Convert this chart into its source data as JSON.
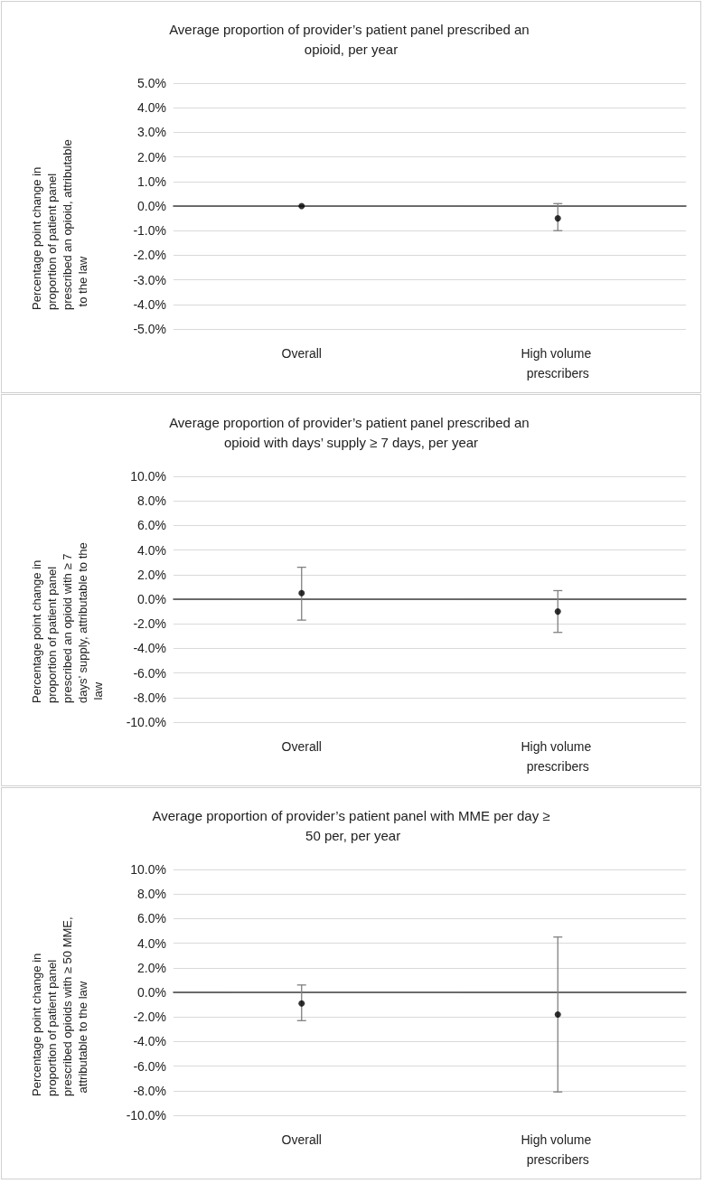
{
  "chart_data": [
    {
      "type": "scatter",
      "title": "Average proportion of provider’s patient panel prescribed an opioid, per year",
      "ylabel": "Percentage point change in proportion of patient panel prescribed an opioid, attributable to the law",
      "categories": [
        "Overall",
        "High volume prescribers"
      ],
      "values": [
        0.0,
        -0.5
      ],
      "errors": [
        null,
        [
          -1.0,
          0.1
        ]
      ],
      "color": "#000000",
      "marker": "circle",
      "grid": "y",
      "ylim": [
        -5,
        5
      ],
      "yticks": [
        {
          "value": -5,
          "label": "-5.0%"
        },
        {
          "value": -4,
          "label": "-4.0%"
        },
        {
          "value": -3,
          "label": "-3.0%"
        },
        {
          "value": -2,
          "label": "-2.0%"
        },
        {
          "value": -1,
          "label": "-1.0%"
        },
        {
          "value": 0,
          "label": "0.0%"
        },
        {
          "value": 1,
          "label": "1.0%"
        },
        {
          "value": 2,
          "label": "2.0%"
        },
        {
          "value": 3,
          "label": "3.0%"
        },
        {
          "value": 4,
          "label": "4.0%"
        },
        {
          "value": 5,
          "label": "5.0%"
        }
      ]
    },
    {
      "type": "scatter",
      "title": "Average proportion of provider’s patient panel prescribed an opioid with days’ supply ≥ 7 days, per year",
      "ylabel": "Percentage point change in proportion of patient panel prescribed an opioid with ≥ 7 days’ supply, attributable to the law",
      "categories": [
        "Overall",
        "High volume prescribers"
      ],
      "values": [
        0.5,
        -1.0
      ],
      "errors": [
        [
          -1.7,
          2.6
        ],
        [
          -2.7,
          0.7
        ]
      ],
      "color": "#000000",
      "marker": "circle",
      "grid": "y",
      "ylim": [
        -10,
        10
      ],
      "yticks": [
        {
          "value": -10,
          "label": "-10.0%"
        },
        {
          "value": -8,
          "label": "-8.0%"
        },
        {
          "value": -6,
          "label": "-6.0%"
        },
        {
          "value": -4,
          "label": "-4.0%"
        },
        {
          "value": -2,
          "label": "-2.0%"
        },
        {
          "value": 0,
          "label": "0.0%"
        },
        {
          "value": 2,
          "label": "2.0%"
        },
        {
          "value": 4,
          "label": "4.0%"
        },
        {
          "value": 6,
          "label": "6.0%"
        },
        {
          "value": 8,
          "label": "8.0%"
        },
        {
          "value": 10,
          "label": "10.0%"
        }
      ]
    },
    {
      "type": "scatter",
      "title": "Average proportion of provider’s patient panel with MME per day ≥ 50 per, per year",
      "ylabel": "Percentage point change in proportion of patient panel prescribed opioids with ≥ 50 MME, attributable to the law",
      "categories": [
        "Overall",
        "High volume prescribers"
      ],
      "values": [
        -0.9,
        -1.8
      ],
      "errors": [
        [
          -2.3,
          0.6
        ],
        [
          -8.1,
          4.5
        ]
      ],
      "color": "#000000",
      "marker": "circle",
      "grid": "y",
      "ylim": [
        -10,
        10
      ],
      "yticks": [
        {
          "value": -10,
          "label": "-10.0%"
        },
        {
          "value": -8,
          "label": "-8.0%"
        },
        {
          "value": -6,
          "label": "-6.0%"
        },
        {
          "value": -4,
          "label": "-4.0%"
        },
        {
          "value": -2,
          "label": "-2.0%"
        },
        {
          "value": 0,
          "label": "0.0%"
        },
        {
          "value": 2,
          "label": "2.0%"
        },
        {
          "value": 4,
          "label": "4.0%"
        },
        {
          "value": 6,
          "label": "6.0%"
        },
        {
          "value": 8,
          "label": "8.0%"
        },
        {
          "value": 10,
          "label": "10.0%"
        }
      ]
    }
  ]
}
